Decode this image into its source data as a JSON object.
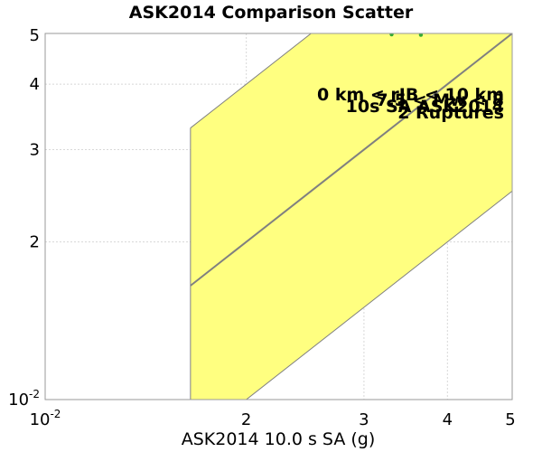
{
  "chart_data": {
    "type": "scatter",
    "title": "ASK2014 Comparison Scatter",
    "xlabel": "ASK2014 10.0 s SA (g)",
    "ylabel": "",
    "x_scale": "log",
    "y_scale": "log",
    "xlim": [
      0.01,
      0.05
    ],
    "ylim": [
      0.01,
      0.05
    ],
    "x_ticks": [
      {
        "value": 0.01,
        "label": "10",
        "sup": "-2"
      },
      {
        "value": 0.02,
        "label": "2"
      },
      {
        "value": 0.03,
        "label": "3"
      },
      {
        "value": 0.04,
        "label": "4"
      },
      {
        "value": 0.05,
        "label": "5"
      }
    ],
    "y_ticks": [
      {
        "value": 0.01,
        "label": "10",
        "sup": "-2"
      },
      {
        "value": 0.02,
        "label": "2"
      },
      {
        "value": 0.03,
        "label": "3"
      },
      {
        "value": 0.04,
        "label": "4"
      },
      {
        "value": 0.05,
        "label": "5"
      }
    ],
    "grid": true,
    "one_to_one_line": {
      "x": [
        0.0165,
        0.05
      ],
      "y": [
        0.0165,
        0.05
      ]
    },
    "band": {
      "x_start": 0.0165,
      "factor": 2,
      "color": "#ffff80",
      "edge_color": "#808080"
    },
    "series": [
      {
        "color": "#33aa33",
        "points": [
          [
            0.033,
            0.0498
          ],
          [
            0.0365,
            0.0497
          ]
        ]
      }
    ],
    "annotations": [
      "0 km < rJB < 10 km",
      "7.5 < Mw < 8",
      "10s SA ASK2014",
      "2 Ruptures"
    ],
    "colors": {
      "grid": "#d8d8d8",
      "frame": "#999999",
      "center_line": "#808080"
    }
  }
}
